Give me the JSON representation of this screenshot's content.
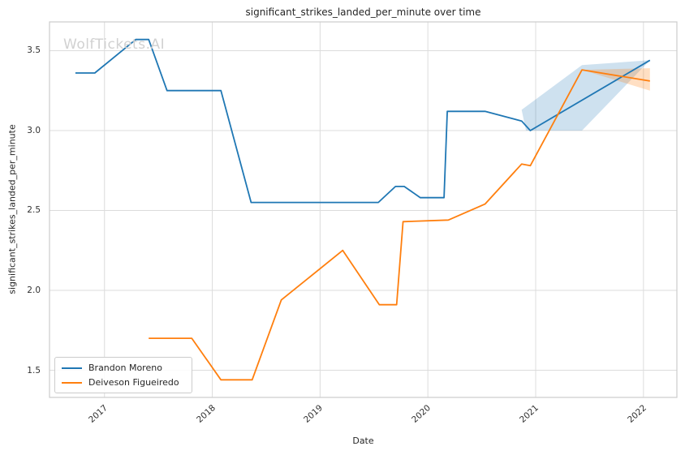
{
  "figure": {
    "watermark": "WolfTickets.AI"
  },
  "chart_data": {
    "type": "line",
    "title": "significant_strikes_landed_per_minute over time",
    "xlabel": "Date",
    "ylabel": "significant_strikes_landed_per_minute",
    "grid": true,
    "legend_position": "lower left",
    "background_color": "#ffffff",
    "grid_color": "#dcdcdc",
    "spine_color": "#cccccc",
    "xlim": [
      2016.49,
      2022.31
    ],
    "ylim": [
      1.33,
      3.68
    ],
    "x_ticks": [
      {
        "value": 2017,
        "label": "2017"
      },
      {
        "value": 2018,
        "label": "2018"
      },
      {
        "value": 2019,
        "label": "2019"
      },
      {
        "value": 2020,
        "label": "2020"
      },
      {
        "value": 2021,
        "label": "2021"
      },
      {
        "value": 2022,
        "label": "2022"
      }
    ],
    "y_ticks": [
      {
        "value": 3.5,
        "label": "3.5"
      },
      {
        "value": 3.0,
        "label": "3.0"
      },
      {
        "value": 2.5,
        "label": "2.5"
      },
      {
        "value": 2.0,
        "label": "2.0"
      },
      {
        "value": 1.5,
        "label": "1.5"
      }
    ],
    "series": [
      {
        "name": "Brandon Moreno",
        "color": "#1f77b4",
        "band_opacity": 0.22,
        "points": [
          [
            2016.73,
            3.36
          ],
          [
            2016.91,
            3.36
          ],
          [
            2017.29,
            3.57
          ],
          [
            2017.41,
            3.57
          ],
          [
            2017.58,
            3.25
          ],
          [
            2018.08,
            3.25
          ],
          [
            2018.36,
            2.55
          ],
          [
            2019.54,
            2.55
          ],
          [
            2019.7,
            2.65
          ],
          [
            2019.78,
            2.65
          ],
          [
            2019.93,
            2.58
          ],
          [
            2020.15,
            2.58
          ],
          [
            2020.18,
            3.12
          ],
          [
            2020.53,
            3.12
          ],
          [
            2020.87,
            3.06
          ],
          [
            2020.95,
            3.0
          ],
          [
            2022.06,
            3.44
          ]
        ],
        "band": [
          [
            2020.87,
            3.13
          ],
          [
            2021.43,
            3.41
          ],
          [
            2022.06,
            3.44
          ],
          [
            2021.43,
            3.0
          ],
          [
            2020.91,
            3.0
          ]
        ]
      },
      {
        "name": "Deiveson Figueiredo",
        "color": "#ff7f0e",
        "band_opacity": 0.25,
        "points": [
          [
            2017.41,
            1.7
          ],
          [
            2017.81,
            1.7
          ],
          [
            2018.08,
            1.44
          ],
          [
            2018.37,
            1.44
          ],
          [
            2018.64,
            1.94
          ],
          [
            2019.21,
            2.25
          ],
          [
            2019.55,
            1.91
          ],
          [
            2019.71,
            1.91
          ],
          [
            2019.77,
            2.43
          ],
          [
            2020.19,
            2.44
          ],
          [
            2020.53,
            2.54
          ],
          [
            2020.87,
            2.79
          ],
          [
            2020.95,
            2.78
          ],
          [
            2021.43,
            3.38
          ],
          [
            2022.06,
            3.31
          ]
        ],
        "band": [
          [
            2021.43,
            3.38
          ],
          [
            2022.06,
            3.39
          ],
          [
            2022.06,
            3.25
          ]
        ]
      }
    ]
  }
}
